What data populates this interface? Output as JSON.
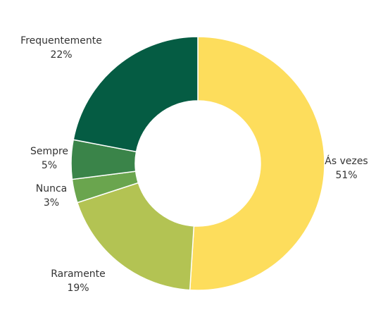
{
  "chart_data": {
    "type": "pie",
    "donut": true,
    "title": "",
    "slices": [
      {
        "label": "Ás vezes",
        "value": 51,
        "value_label": "51%",
        "color": "#FDDD5C"
      },
      {
        "label": "Raramente",
        "value": 19,
        "value_label": "19%",
        "color": "#B3C353"
      },
      {
        "label": "Nunca",
        "value": 3,
        "value_label": "3%",
        "color": "#6AA54E"
      },
      {
        "label": "Sempre",
        "value": 5,
        "value_label": "5%",
        "color": "#3A8449"
      },
      {
        "label": "Frequentemente",
        "value": 22,
        "value_label": "22%",
        "color": "#055C43"
      }
    ],
    "legend": "none"
  }
}
